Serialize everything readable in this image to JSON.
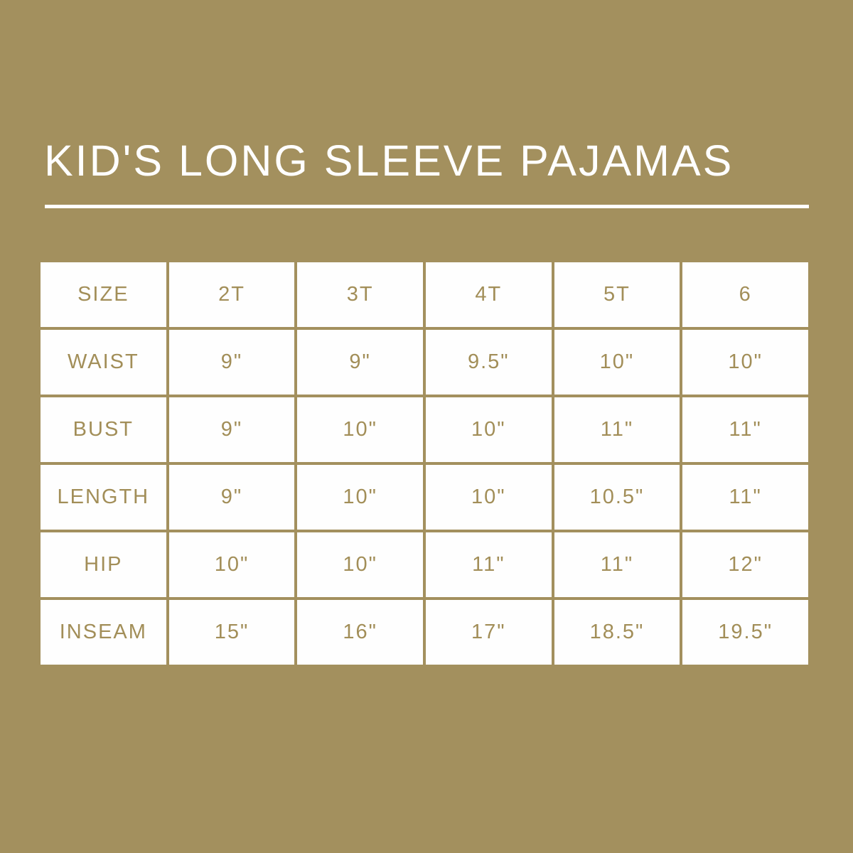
{
  "page": {
    "title": "KID'S LONG SLEEVE PAJAMAS"
  },
  "colors": {
    "background": "#a3905e",
    "cell_background": "#fefefe",
    "table_text": "#a28e58",
    "title_text": "#ffffff",
    "divider": "#ffffff"
  },
  "chart_data": {
    "type": "table",
    "title": "KID'S LONG SLEEVE PAJAMAS",
    "columns": [
      "SIZE",
      "2T",
      "3T",
      "4T",
      "5T",
      "6"
    ],
    "rows": [
      [
        "WAIST",
        "9\"",
        "9\"",
        "9.5\"",
        "10\"",
        "10\""
      ],
      [
        "BUST",
        "9\"",
        "10\"",
        "10\"",
        "11\"",
        "11\""
      ],
      [
        "LENGTH",
        "9\"",
        "10\"",
        "10\"",
        "10.5\"",
        "11\""
      ],
      [
        "HIP",
        "10\"",
        "10\"",
        "11\"",
        "11\"",
        "12\""
      ],
      [
        "INSEAM",
        "15\"",
        "16\"",
        "17\"",
        "18.5\"",
        "19.5\""
      ]
    ]
  }
}
